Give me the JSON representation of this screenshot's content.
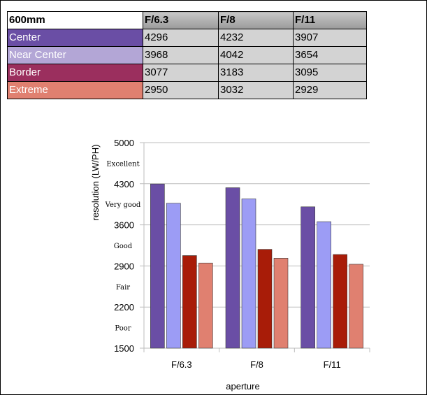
{
  "table": {
    "corner_label": "600mm",
    "columns": [
      "F/6.3",
      "F/8",
      "F/11"
    ],
    "rows": [
      {
        "label": "Center",
        "color": "#6a4ea5",
        "values": [
          "4296",
          "4232",
          "3907"
        ]
      },
      {
        "label": "Near Center",
        "color": "#b3a6d6",
        "values": [
          "3968",
          "4042",
          "3654"
        ]
      },
      {
        "label": "Border",
        "color": "#9b2f5e",
        "values": [
          "3077",
          "3183",
          "3095"
        ]
      },
      {
        "label": "Extreme",
        "color": "#e08070",
        "values": [
          "2950",
          "3032",
          "2929"
        ]
      }
    ]
  },
  "chart_data": {
    "type": "bar",
    "categories": [
      "F/6.3",
      "F/8",
      "F/11"
    ],
    "series": [
      {
        "color": "#6a4ea5",
        "values": [
          4296,
          4232,
          3907
        ]
      },
      {
        "color": "#9c9cf5",
        "values": [
          3968,
          4042,
          3654
        ]
      },
      {
        "color": "#a81c08",
        "values": [
          3077,
          3183,
          3095
        ]
      },
      {
        "color": "#e08070",
        "values": [
          2950,
          3032,
          2929
        ]
      }
    ],
    "xlabel": "aperture",
    "ylabel": "resolution (LW/PH)",
    "ylim": [
      1500,
      5000
    ],
    "yticks": [
      1500,
      2200,
      2900,
      3600,
      4300,
      5000
    ],
    "rating_bands": [
      {
        "label": "Excellent",
        "y": 4650
      },
      {
        "label": "Very good",
        "y": 3950
      },
      {
        "label": "Good",
        "y": 3250
      },
      {
        "label": "Fair",
        "y": 2550
      },
      {
        "label": "Poor",
        "y": 1850
      }
    ],
    "grid": true
  }
}
